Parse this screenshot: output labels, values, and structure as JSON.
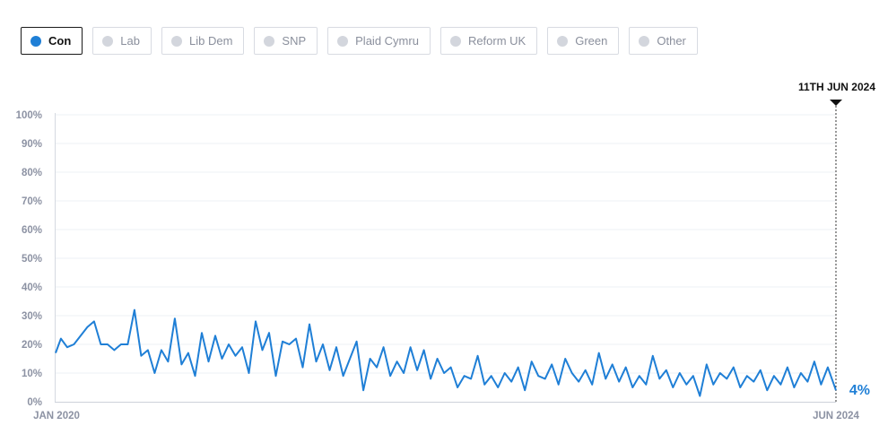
{
  "filters": [
    {
      "label": "Con",
      "active": true
    },
    {
      "label": "Lab",
      "active": false
    },
    {
      "label": "Lib Dem",
      "active": false
    },
    {
      "label": "SNP",
      "active": false
    },
    {
      "label": "Plaid Cymru",
      "active": false
    },
    {
      "label": "Reform UK",
      "active": false
    },
    {
      "label": "Green",
      "active": false
    },
    {
      "label": "Other",
      "active": false
    }
  ],
  "colors": {
    "accent": "#1f7fd6",
    "grid": "#eef0f4",
    "tick": "#8c92a3"
  },
  "chart_data": {
    "type": "line",
    "ylim": [
      0,
      100
    ],
    "yticks": [
      "0%",
      "10%",
      "20%",
      "30%",
      "40%",
      "50%",
      "60%",
      "70%",
      "80%",
      "90%",
      "100%"
    ],
    "xlabels": [
      "JAN 2020",
      "JUN 2024"
    ],
    "marker_label": "11TH JUN 2024",
    "end_label": "4%",
    "grid": true,
    "series": [
      {
        "name": "Con",
        "color": "#1f7fd6",
        "x": [
          "2020-01-01",
          "2020-01-12",
          "2020-01-25",
          "2020-02-08",
          "2020-02-22",
          "2020-03-07",
          "2020-03-21",
          "2020-04-04",
          "2020-04-18",
          "2020-05-02",
          "2020-05-16",
          "2020-05-30",
          "2020-06-13",
          "2020-06-27",
          "2020-07-11",
          "2020-07-25",
          "2020-08-08",
          "2020-08-22",
          "2020-09-05",
          "2020-09-19",
          "2020-10-03",
          "2020-10-17",
          "2020-10-31",
          "2020-11-14",
          "2020-11-28",
          "2020-12-12",
          "2020-12-26",
          "2021-01-09",
          "2021-01-23",
          "2021-02-06",
          "2021-02-20",
          "2021-03-06",
          "2021-03-20",
          "2021-04-03",
          "2021-04-17",
          "2021-05-01",
          "2021-05-15",
          "2021-05-29",
          "2021-06-12",
          "2021-06-26",
          "2021-07-10",
          "2021-07-24",
          "2021-08-07",
          "2021-08-21",
          "2021-09-04",
          "2021-09-18",
          "2021-10-02",
          "2021-10-16",
          "2021-10-30",
          "2021-11-13",
          "2021-11-27",
          "2021-12-11",
          "2021-12-25",
          "2022-01-08",
          "2022-01-22",
          "2022-02-05",
          "2022-02-19",
          "2022-03-05",
          "2022-03-19",
          "2022-04-02",
          "2022-04-16",
          "2022-04-30",
          "2022-05-14",
          "2022-05-28",
          "2022-06-11",
          "2022-06-25",
          "2022-07-09",
          "2022-07-23",
          "2022-08-06",
          "2022-08-20",
          "2022-09-03",
          "2022-09-17",
          "2022-10-01",
          "2022-10-15",
          "2022-10-29",
          "2022-11-12",
          "2022-11-26",
          "2022-12-10",
          "2022-12-24",
          "2023-01-07",
          "2023-01-21",
          "2023-02-04",
          "2023-02-18",
          "2023-03-04",
          "2023-03-18",
          "2023-04-01",
          "2023-04-15",
          "2023-04-29",
          "2023-05-13",
          "2023-05-27",
          "2023-06-10",
          "2023-06-24",
          "2023-07-08",
          "2023-07-22",
          "2023-08-05",
          "2023-08-19",
          "2023-09-02",
          "2023-09-16",
          "2023-09-30",
          "2023-10-14",
          "2023-10-28",
          "2023-11-11",
          "2023-11-25",
          "2023-12-09",
          "2023-12-23",
          "2024-01-06",
          "2024-01-20",
          "2024-02-03",
          "2024-02-17",
          "2024-03-02",
          "2024-03-16",
          "2024-03-30",
          "2024-04-13",
          "2024-04-27",
          "2024-05-11",
          "2024-05-25",
          "2024-06-11"
        ],
        "values": [
          17,
          22,
          19,
          20,
          23,
          26,
          28,
          20,
          20,
          18,
          20,
          20,
          32,
          16,
          18,
          10,
          18,
          14,
          29,
          13,
          17,
          9,
          24,
          14,
          23,
          15,
          20,
          16,
          19,
          10,
          28,
          18,
          24,
          9,
          21,
          20,
          22,
          12,
          27,
          14,
          20,
          11,
          19,
          9,
          15,
          21,
          4,
          15,
          12,
          19,
          9,
          14,
          10,
          19,
          11,
          18,
          8,
          15,
          10,
          12,
          5,
          9,
          8,
          16,
          6,
          9,
          5,
          10,
          7,
          12,
          4,
          14,
          9,
          8,
          13,
          6,
          15,
          10,
          7,
          11,
          6,
          17,
          8,
          13,
          7,
          12,
          5,
          9,
          6,
          16,
          8,
          11,
          5,
          10,
          6,
          9,
          2,
          13,
          6,
          10,
          8,
          12,
          5,
          9,
          7,
          11,
          4,
          9,
          6,
          12,
          5,
          10,
          7,
          14,
          6,
          12,
          4
        ]
      }
    ]
  }
}
